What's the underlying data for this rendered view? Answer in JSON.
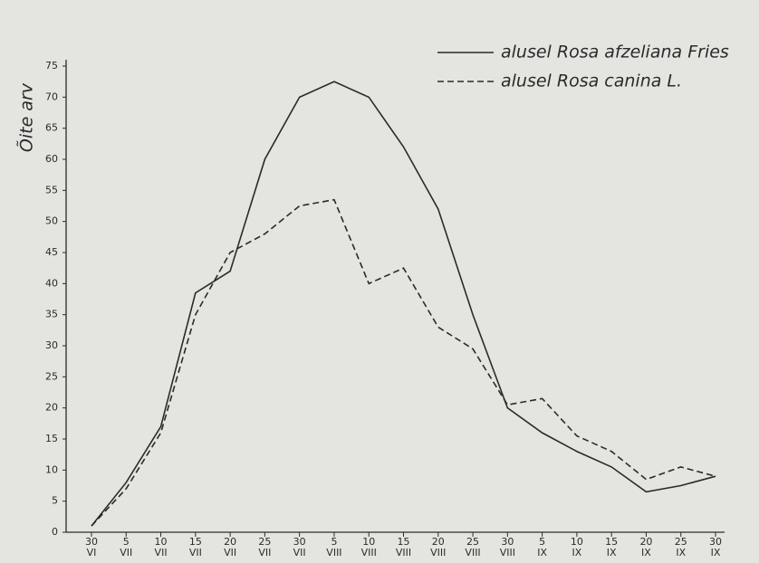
{
  "chart_data": {
    "type": "line",
    "y_label": "Õite arv",
    "categories": [
      [
        "30",
        "VI"
      ],
      [
        "5",
        "VII"
      ],
      [
        "10",
        "VII"
      ],
      [
        "15",
        "VII"
      ],
      [
        "20",
        "VII"
      ],
      [
        "25",
        "VII"
      ],
      [
        "30",
        "VII"
      ],
      [
        "5",
        "VIII"
      ],
      [
        "10",
        "VIII"
      ],
      [
        "15",
        "VIII"
      ],
      [
        "20",
        "VIII"
      ],
      [
        "25",
        "VIII"
      ],
      [
        "30",
        "VIII"
      ],
      [
        "5",
        "IX"
      ],
      [
        "10",
        "IX"
      ],
      [
        "15",
        "IX"
      ],
      [
        "20",
        "IX"
      ],
      [
        "25",
        "IX"
      ],
      [
        "30",
        "IX"
      ]
    ],
    "series": [
      {
        "name": "alusel Rosa afzeliana Fries",
        "color": "#2a2a2a",
        "dashed": false,
        "values": [
          1,
          8,
          17,
          38.5,
          42,
          60,
          70,
          72.5,
          70,
          62,
          52,
          35,
          20,
          16,
          13,
          10.5,
          6.5,
          7.5,
          9
        ]
      },
      {
        "name": "alusel Rosa canina L.",
        "color": "#2a2a2a",
        "dashed": true,
        "values": [
          1,
          7,
          16,
          35,
          45,
          48,
          52.5,
          53.5,
          40,
          42.5,
          33,
          29.5,
          20.5,
          21.5,
          15.5,
          13,
          8.5,
          10.5,
          9
        ]
      }
    ],
    "ylim": [
      0,
      75
    ],
    "yticks": [
      0,
      5,
      10,
      15,
      20,
      25,
      30,
      35,
      40,
      45,
      50,
      55,
      60,
      65,
      70,
      75
    ]
  }
}
